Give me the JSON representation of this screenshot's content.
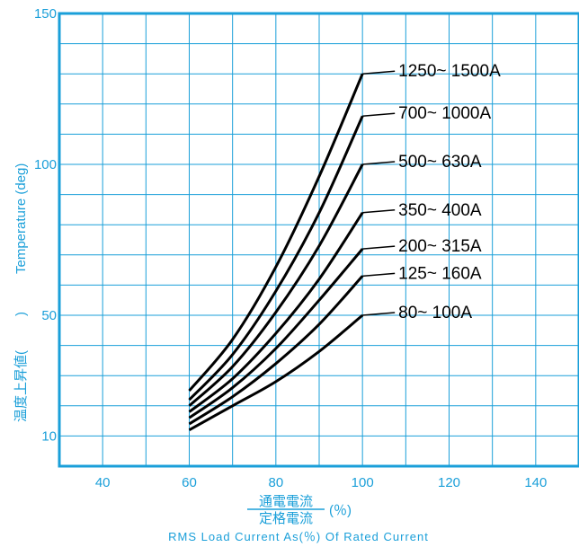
{
  "chart_data": {
    "type": "line",
    "xlabel_main": "通電電流",
    "xlabel_denominator": "定格電流",
    "xlabel_unit": "(％)",
    "xlabel_sub": "RMS Load Current As(％) Of Rated Current",
    "ylabel_jp": "温度上昇値(",
    "ylabel_close": ")",
    "ylabel_en": "Temperature (deg)",
    "xlim": [
      30,
      150
    ],
    "ylim": [
      0,
      150
    ],
    "x_ticks": [
      40,
      60,
      80,
      100,
      120,
      140
    ],
    "y_ticks": [
      10,
      50,
      100,
      150
    ],
    "grid": true,
    "x": [
      60,
      70,
      80,
      90,
      100
    ],
    "series": [
      {
        "name": "80~ 100A",
        "values": [
          12,
          20,
          28,
          38,
          50
        ]
      },
      {
        "name": "125~ 160A",
        "values": [
          14,
          23,
          34,
          47,
          63
        ]
      },
      {
        "name": "200~ 315A",
        "values": [
          16,
          26,
          39,
          55,
          72
        ]
      },
      {
        "name": "350~ 400A",
        "values": [
          18,
          29,
          44,
          62,
          84
        ]
      },
      {
        "name": "500~ 630A",
        "values": [
          20,
          33,
          51,
          73,
          100
        ]
      },
      {
        "name": "700~ 1000A",
        "values": [
          22,
          37,
          58,
          84,
          116
        ]
      },
      {
        "name": "1250~ 1500A",
        "values": [
          25,
          42,
          66,
          96,
          130
        ]
      }
    ]
  },
  "colors": {
    "axis": "#1a9fd9",
    "grid": "#1a9fd9",
    "curve": "#000000"
  }
}
